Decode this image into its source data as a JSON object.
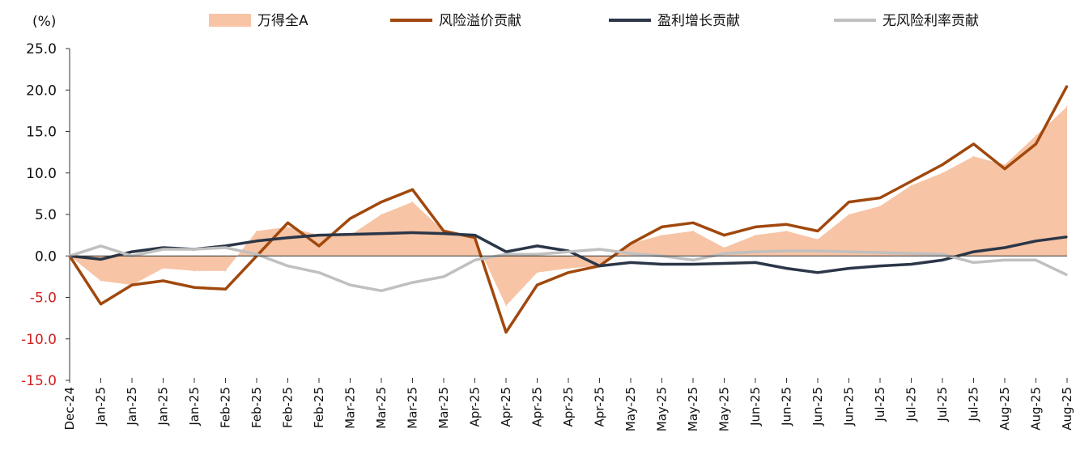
{
  "chart_data": {
    "type": "line",
    "unit_label": "(%)",
    "ylim": [
      -15,
      25
    ],
    "yticks": [
      "25.0",
      "20.0",
      "15.0",
      "10.0",
      "5.0",
      "0.0",
      "-5.0",
      "-10.0",
      "-15.0"
    ],
    "negative_tick_color": "#d21e1e",
    "x_tick_labels": [
      "Dec-24",
      "Jan-25",
      "Jan-25",
      "Jan-25",
      "Jan-25",
      "Feb-25",
      "Feb-25",
      "Feb-25",
      "Feb-25",
      "Mar-25",
      "Mar-25",
      "Mar-25",
      "Mar-25",
      "Apr-25",
      "Apr-25",
      "Apr-25",
      "Apr-25",
      "Apr-25",
      "May-25",
      "May-25",
      "May-25",
      "May-25",
      "Jun-25",
      "Jun-25",
      "Jun-25",
      "Jun-25",
      "Jul-25",
      "Jul-25",
      "Jul-25",
      "Jul-25",
      "Aug-25",
      "Aug-25",
      "Aug-25"
    ],
    "grid": false,
    "legend_position": "top",
    "series": [
      {
        "name": "万得全A",
        "kind": "area",
        "color": "#f7c4a5",
        "values": [
          0.0,
          -3.0,
          -3.5,
          -1.5,
          -1.8,
          -1.8,
          3.0,
          3.5,
          2.5,
          2.5,
          5.0,
          6.5,
          3.0,
          2.0,
          -6.0,
          -2.0,
          -1.5,
          -1.2,
          1.5,
          2.5,
          3.0,
          1.0,
          2.5,
          3.0,
          2.0,
          5.0,
          6.0,
          8.5,
          10.0,
          12.0,
          11.0,
          14.5,
          18.0
        ]
      },
      {
        "name": "风险溢价贡献",
        "kind": "line",
        "color": "#a0480d",
        "values": [
          0.0,
          -5.8,
          -3.5,
          -3.0,
          -3.8,
          -4.0,
          0.0,
          4.0,
          1.2,
          4.5,
          6.5,
          8.0,
          3.0,
          2.2,
          -9.2,
          -3.5,
          -2.0,
          -1.2,
          1.5,
          3.5,
          4.0,
          2.5,
          3.5,
          3.8,
          3.0,
          6.5,
          7.0,
          9.0,
          11.0,
          13.5,
          10.5,
          13.5,
          20.5
        ]
      },
      {
        "name": "盈利增长贡献",
        "kind": "line",
        "color": "#2b3648",
        "values": [
          0.0,
          -0.4,
          0.5,
          1.0,
          0.8,
          1.2,
          1.8,
          2.2,
          2.5,
          2.6,
          2.7,
          2.8,
          2.7,
          2.5,
          0.5,
          1.2,
          0.6,
          -1.2,
          -0.8,
          -1.0,
          -1.0,
          -0.9,
          -0.8,
          -1.5,
          -2.0,
          -1.5,
          -1.2,
          -1.0,
          -0.5,
          0.5,
          1.0,
          1.8,
          2.3
        ]
      },
      {
        "name": "无风险利率贡献",
        "kind": "line",
        "color": "#c0c0c0",
        "values": [
          0.0,
          1.2,
          0.0,
          0.8,
          0.8,
          1.0,
          0.2,
          -1.2,
          -2.0,
          -3.5,
          -4.2,
          -3.2,
          -2.5,
          -0.5,
          0.2,
          0.2,
          0.5,
          0.8,
          0.3,
          0.0,
          -0.5,
          0.3,
          0.5,
          0.6,
          0.6,
          0.5,
          0.4,
          0.3,
          0.2,
          -0.8,
          -0.5,
          -0.5,
          -2.3
        ]
      }
    ]
  }
}
